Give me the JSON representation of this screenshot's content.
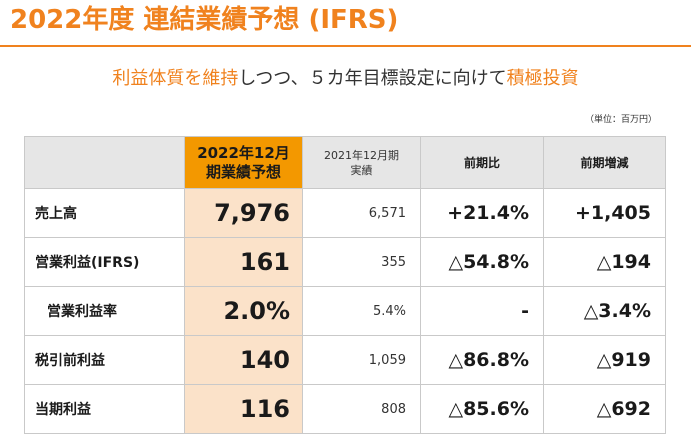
{
  "title": "2022年度 連結業績予想 (IFRS)",
  "subtitle": {
    "part1": "利益体質を維持",
    "part2": "しつつ、５カ年目標設定に向けて",
    "part3": "積極投資"
  },
  "unit_note": "（単位：百万円）",
  "table": {
    "headers": {
      "blank": "",
      "focus_line1": "2022年12月",
      "focus_line2": "期業績予想",
      "prev_line1": "2021年12月期",
      "prev_line2": "実績",
      "yoy": "前期比",
      "diff": "前期増減"
    },
    "rows": [
      {
        "label": "売上高",
        "forecast": "7,976",
        "prior": "6,571",
        "yoy": "+21.4%",
        "diff": "+1,405"
      },
      {
        "label": "営業利益(IFRS)",
        "forecast": "161",
        "prior": "355",
        "yoy": "△54.8%",
        "diff": "△194"
      },
      {
        "label": "営業利益率",
        "forecast": "2.0%",
        "prior": "5.4%",
        "yoy": "-",
        "diff": "△3.4%"
      },
      {
        "label": "税引前利益",
        "forecast": "140",
        "prior": "1,059",
        "yoy": "△86.8%",
        "diff": "△919"
      },
      {
        "label": "当期利益",
        "forecast": "116",
        "prior": "808",
        "yoy": "△85.6%",
        "diff": "△692"
      }
    ]
  },
  "colors": {
    "accent": "#f0821e",
    "focus_header": "#f39800",
    "focus_cell": "#fbe2c9",
    "header_gray": "#e6e6e6"
  }
}
